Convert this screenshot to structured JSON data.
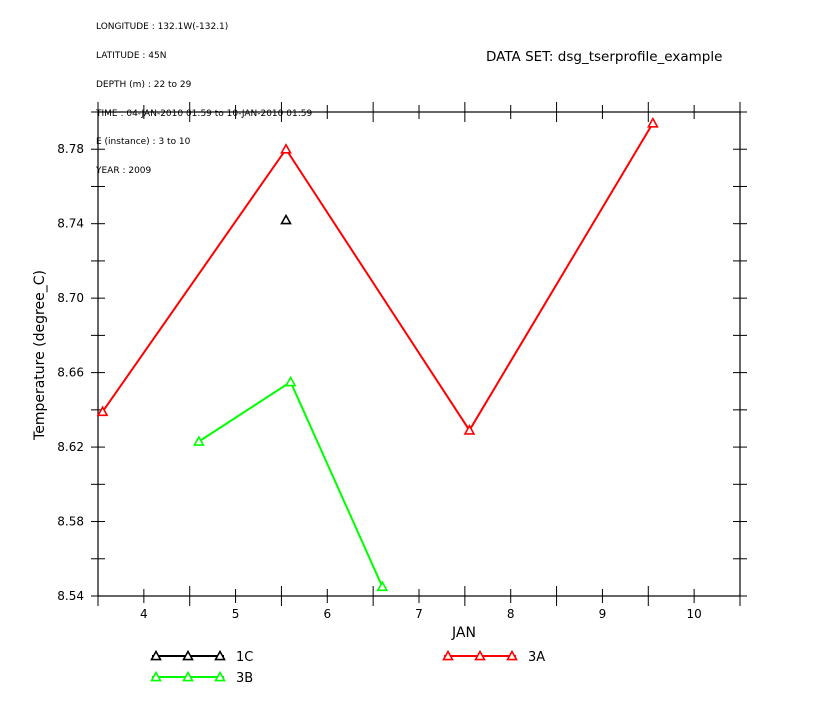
{
  "header": {
    "lines": [
      "LONGITUDE : 132.1W(-132.1)",
      "LATITUDE : 45N",
      "DEPTH (m) : 22 to 29",
      "TIME : 04-JAN-2010 01:59 to 10-JAN-2010 01:59",
      "E (instance) : 3 to 10",
      "YEAR : 2009"
    ],
    "dataset": "DATA SET: dsg_tserprofile_example"
  },
  "chart_data": {
    "type": "line",
    "xlabel": "JAN",
    "ylabel": "Temperature (degree_C)",
    "xlim": [
      3.5,
      10.5
    ],
    "ylim": [
      8.54,
      8.8
    ],
    "xticks": [
      4,
      5,
      6,
      7,
      8,
      9,
      10
    ],
    "yticks": [
      8.54,
      8.58,
      8.62,
      8.66,
      8.7,
      8.74,
      8.78
    ],
    "ytick_labels": [
      "8.54",
      "8.58",
      "8.62",
      "8.66",
      "8.70",
      "8.74",
      "8.78"
    ],
    "marker": "triangle",
    "series": [
      {
        "name": "1C",
        "color": "#000000",
        "x": [
          5.55
        ],
        "y": [
          8.742
        ]
      },
      {
        "name": "3B",
        "color": "#00ff00",
        "x": [
          4.6,
          5.6,
          6.6
        ],
        "y": [
          8.623,
          8.655,
          8.545
        ]
      },
      {
        "name": "3A",
        "color": "#ff0000",
        "x": [
          3.55,
          5.55,
          7.55,
          9.55
        ],
        "y": [
          8.639,
          8.78,
          8.629,
          8.794
        ]
      }
    ],
    "legend": {
      "placement": "bottom"
    }
  }
}
